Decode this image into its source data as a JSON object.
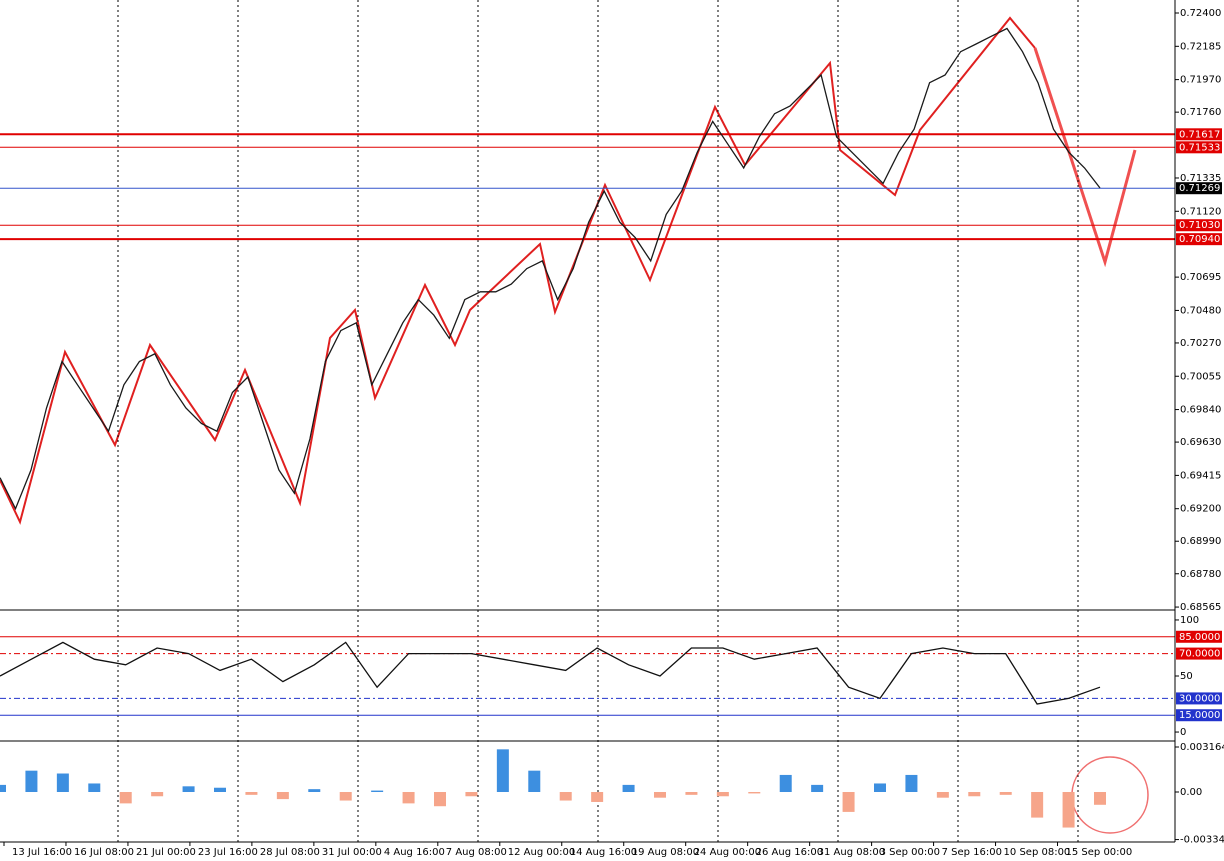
{
  "chart_data": [
    {
      "type": "line",
      "color": "#1a1a1a",
      "categories": [
        "13 Jul 16:00",
        null,
        null,
        null,
        "16 Jul 08:00",
        null,
        null,
        null,
        "21 Jul 00:00",
        null,
        null,
        null,
        "23 Jul 16:00",
        null,
        null,
        null,
        "28 Jul 08:00",
        null,
        null,
        null,
        "31 Jul 00:00",
        null,
        null,
        null,
        "4 Aug 16:00",
        null,
        null,
        null,
        "7 Aug 08:00",
        null,
        null,
        null,
        "12 Aug 00:00",
        null,
        null,
        null,
        "14 Aug 16:00",
        null,
        null,
        null,
        "19 Aug 08:00",
        null,
        null,
        null,
        "24 Aug 00:00",
        null,
        null,
        null,
        "26 Aug 16:00",
        null,
        null,
        null,
        "31 Aug 08:00",
        null,
        null,
        null,
        "3 Sep 00:00",
        null,
        null,
        null,
        "7 Sep 16:00",
        null,
        null,
        null,
        "10 Sep 08:00",
        null,
        null,
        null,
        "15 Sep 00:00",
        null,
        null,
        null
      ],
      "values": [
        0.694,
        0.692,
        0.6945,
        0.6985,
        0.7015,
        0.7,
        0.6985,
        0.697,
        0.7,
        0.7015,
        0.702,
        0.7,
        0.6985,
        0.6975,
        0.697,
        0.6995,
        0.7005,
        0.6975,
        0.6945,
        0.693,
        0.6965,
        0.7015,
        0.7035,
        0.704,
        0.7,
        0.702,
        0.704,
        0.7055,
        0.7045,
        0.703,
        0.7055,
        0.706,
        0.706,
        0.7065,
        0.7075,
        0.708,
        0.7055,
        0.7075,
        0.7105,
        0.7125,
        0.7105,
        0.7095,
        0.708,
        0.711,
        0.7125,
        0.715,
        0.717,
        0.7155,
        0.714,
        0.716,
        0.7175,
        0.718,
        0.719,
        0.72,
        0.716,
        0.715,
        0.714,
        0.713,
        0.715,
        0.7165,
        0.7195,
        0.72,
        0.7215,
        0.722,
        0.7225,
        0.723,
        0.7215,
        0.7195,
        0.7165,
        0.715,
        0.714,
        0.7127
      ],
      "ylim": [
        0.68546,
        0.72484
      ],
      "yticks": [
        {
          "value": 0.724,
          "label": "0.72400"
        },
        {
          "value": 0.72185,
          "label": "0.72185"
        },
        {
          "value": 0.7197,
          "label": "0.71970"
        },
        {
          "value": 0.7176,
          "label": "0.71760"
        },
        {
          "value": 0.71335,
          "label": "0.71335"
        },
        {
          "value": 0.7112,
          "label": "0.71120"
        },
        {
          "value": 0.70695,
          "label": "0.70695"
        },
        {
          "value": 0.7048,
          "label": "0.70480"
        },
        {
          "value": 0.7027,
          "label": "0.70270"
        },
        {
          "value": 0.70055,
          "label": "0.70055"
        },
        {
          "value": 0.6984,
          "label": "0.69840"
        },
        {
          "value": 0.6963,
          "label": "0.69630"
        },
        {
          "value": 0.69415,
          "label": "0.69415"
        },
        {
          "value": 0.692,
          "label": "0.69200"
        },
        {
          "value": 0.6899,
          "label": "0.68990"
        },
        {
          "value": 0.6878,
          "label": "0.68780"
        },
        {
          "value": 0.68565,
          "label": "0.68565"
        }
      ],
      "levels": {
        "values": [
          0.71617,
          0.71533,
          0.71269,
          0.7103,
          0.7094
        ],
        "value_labels": [
          "0.71617",
          "0.71533",
          "0.71269",
          "0.71030",
          "0.70940"
        ],
        "colors": [
          "#e00000",
          "#e00000",
          "#3355cc",
          "#e00000",
          "#e00000"
        ]
      }
    },
    {
      "type": "line",
      "color": "#111111",
      "values": [
        50,
        65,
        80,
        65,
        60,
        75,
        70,
        55,
        65,
        45,
        60,
        80,
        40,
        70,
        70,
        70,
        65,
        60,
        55,
        75,
        60,
        50,
        75,
        75,
        65,
        70,
        75,
        40,
        30,
        70,
        75,
        70,
        70,
        25,
        30,
        40
      ],
      "ylim": [
        -7.1,
        107.1
      ],
      "yticks": [
        100,
        50,
        0
      ],
      "levels": {
        "values": [
          85,
          70,
          30,
          15
        ],
        "value_labels": [
          "85.0000",
          "70.0000",
          "30.0000",
          "15.0000"
        ],
        "colors": [
          "#e00000",
          "#e00000",
          "#2233cc",
          "#2233cc"
        ]
      }
    },
    {
      "type": "bar",
      "color": "#3d8fe0",
      "negative_color": "#f6a58a",
      "values": [
        0.0005,
        0.0015,
        0.0013,
        0.0006,
        -0.0008,
        -0.0003,
        0.0004,
        0.0003,
        -0.0002,
        -0.0005,
        0.0002,
        -0.0006,
        0.0001,
        -0.0008,
        -0.001,
        -0.0003,
        0.003,
        0.0015,
        -0.0006,
        -0.0007,
        0.0005,
        -0.0004,
        -0.0002,
        -0.0003,
        -0.0001,
        0.0012,
        0.0005,
        -0.0014,
        0.0006,
        0.0012,
        -0.0004,
        -0.0003,
        -0.0002,
        -0.0018,
        -0.0025,
        -0.0009
      ],
      "ylim": [
        -0.003516,
        0.003516
      ],
      "yticks": [
        0.0031642,
        {
          "value": 0,
          "label": "0.00"
        },
        -0.003345
      ]
    }
  ]
}
